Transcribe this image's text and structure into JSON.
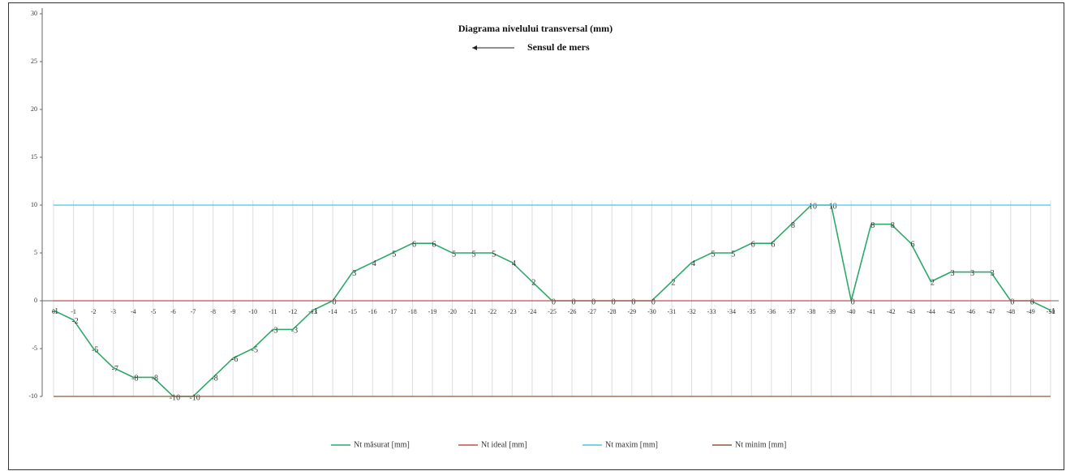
{
  "chart_data": {
    "type": "line",
    "title": "Diagrama nivelului  transversal (mm)",
    "subtitle": "Sensul de mers",
    "categories": [
      "0",
      "-1",
      "-2",
      "-3",
      "-4",
      "-5",
      "-6",
      "-7",
      "-8",
      "-9",
      "-10",
      "-11",
      "-12",
      "-13",
      "-14",
      "-15",
      "-16",
      "-17",
      "-18",
      "-19",
      "-20",
      "-21",
      "-22",
      "-23",
      "-24",
      "-25",
      "-26",
      "-27",
      "-28",
      "-29",
      "-30",
      "-31",
      "-32",
      "-33",
      "-34",
      "-35",
      "-36",
      "-37",
      "-38",
      "-39",
      "-40",
      "-41",
      "-42",
      "-43",
      "-44",
      "-45",
      "-46",
      "-47",
      "-48",
      "-49",
      "-50"
    ],
    "series": [
      {
        "name": "Nt măsurat [mm]",
        "color": "#2ea86a",
        "data_labels": true,
        "values": [
          -1,
          -2,
          -5,
          -7,
          -8,
          -8,
          -10,
          -10,
          -8,
          -6,
          -5,
          -3,
          -3,
          -1,
          0,
          3,
          4,
          5,
          6,
          6,
          5,
          5,
          5,
          4,
          2,
          0,
          0,
          0,
          0,
          0,
          0,
          2,
          4,
          5,
          5,
          6,
          6,
          8,
          10,
          10,
          0,
          8,
          8,
          6,
          2,
          3,
          3,
          3,
          0,
          0,
          -1
        ]
      },
      {
        "name": "Nt ideal [mm]",
        "color": "#c0504d",
        "data_labels": false,
        "values": [
          0,
          0,
          0,
          0,
          0,
          0,
          0,
          0,
          0,
          0,
          0,
          0,
          0,
          0,
          0,
          0,
          0,
          0,
          0,
          0,
          0,
          0,
          0,
          0,
          0,
          0,
          0,
          0,
          0,
          0,
          0,
          0,
          0,
          0,
          0,
          0,
          0,
          0,
          0,
          0,
          0,
          0,
          0,
          0,
          0,
          0,
          0,
          0,
          0,
          0,
          0
        ]
      },
      {
        "name": "Nt maxim [mm]",
        "color": "#4bc4d8",
        "data_labels": false,
        "values": [
          10,
          10,
          10,
          10,
          10,
          10,
          10,
          10,
          10,
          10,
          10,
          10,
          10,
          10,
          10,
          10,
          10,
          10,
          10,
          10,
          10,
          10,
          10,
          10,
          10,
          10,
          10,
          10,
          10,
          10,
          10,
          10,
          10,
          10,
          10,
          10,
          10,
          10,
          10,
          10,
          10,
          10,
          10,
          10,
          10,
          10,
          10,
          10,
          10,
          10,
          10
        ]
      },
      {
        "name": "Nt minim [mm]",
        "color": "#8b5a3c",
        "data_labels": false,
        "values": [
          -10,
          -10,
          -10,
          -10,
          -10,
          -10,
          -10,
          -10,
          -10,
          -10,
          -10,
          -10,
          -10,
          -10,
          -10,
          -10,
          -10,
          -10,
          -10,
          -10,
          -10,
          -10,
          -10,
          -10,
          -10,
          -10,
          -10,
          -10,
          -10,
          -10,
          -10,
          -10,
          -10,
          -10,
          -10,
          -10,
          -10,
          -10,
          -10,
          -10,
          -10,
          -10,
          -10,
          -10,
          -10,
          -10,
          -10,
          -10,
          -10,
          -10,
          -10
        ]
      }
    ],
    "ylim": [
      -10,
      30
    ],
    "yticks": [
      -10,
      -5,
      0,
      5,
      10,
      15,
      20,
      25,
      30
    ],
    "grid": true
  }
}
